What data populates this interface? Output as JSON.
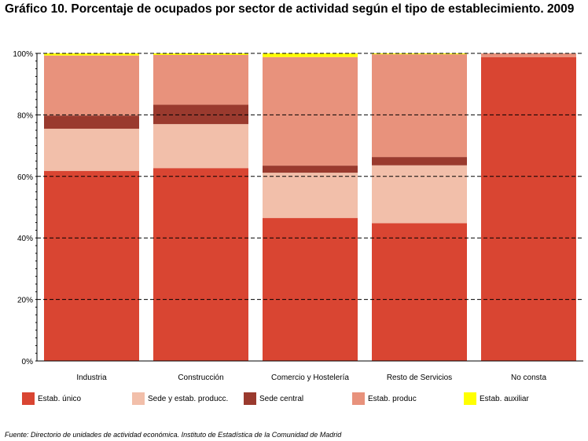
{
  "title": "Gráfico 10. Porcentaje de ocupados por sector de actividad según el tipo de establecimiento. 2009",
  "source": "Fuente: Directorio de unidades de actividad económica. Instituto de Estadística de la Comunidad de Madrid",
  "chart_data": {
    "type": "bar",
    "stacked": true,
    "title": "Gráfico 10. Porcentaje de ocupados por sector de actividad según el tipo de establecimiento. 2009",
    "xlabel": "",
    "ylabel": "",
    "ylim": [
      0,
      100
    ],
    "y_tick_labels": [
      "0%",
      "20%",
      "40%",
      "60%",
      "80%",
      "100%"
    ],
    "grid": true,
    "legend_position": "bottom",
    "categories": [
      "Industria",
      "Construcción",
      "Comercio y Hostelería",
      "Resto de Servicios",
      "No consta"
    ],
    "series": [
      {
        "name": "Estab. único",
        "color": "#d94532",
        "values": [
          61.8,
          62.7,
          46.5,
          44.8,
          98.8
        ]
      },
      {
        "name": "Sede y estab. producc.",
        "color": "#f2bfaa",
        "values": [
          13.7,
          14.3,
          14.7,
          18.8,
          0.0
        ]
      },
      {
        "name": "Sede central",
        "color": "#9a3a2e",
        "values": [
          4.3,
          6.3,
          2.3,
          2.7,
          0.0
        ]
      },
      {
        "name": "Estab. produc",
        "color": "#e8927c",
        "values": [
          19.5,
          16.2,
          35.3,
          33.4,
          1.2
        ]
      },
      {
        "name": "Estab. auxiliar",
        "color": "#ffff00",
        "values": [
          0.7,
          0.5,
          1.2,
          0.3,
          0.0
        ]
      }
    ]
  }
}
